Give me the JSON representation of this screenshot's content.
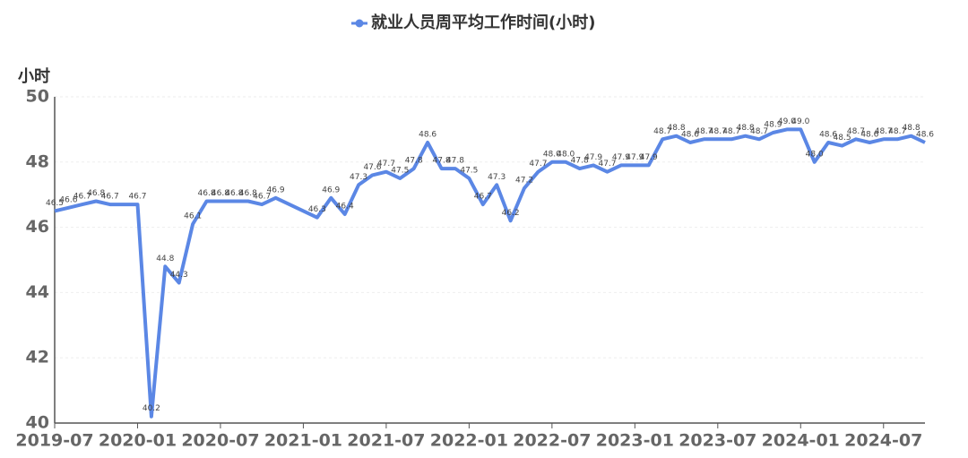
{
  "chart_data": {
    "type": "line",
    "title": "就业人员周平均工作时间(小时)",
    "y_label": "小时",
    "color": "#5b87e5",
    "x": [
      "2019-07",
      "2019-08",
      "2019-09",
      "2019-10",
      "2019-11",
      "2020-01",
      "2020-02",
      "2020-03",
      "2020-04",
      "2020-05",
      "2020-06",
      "2020-07",
      "2020-08",
      "2020-09",
      "2020-10",
      "2020-11",
      "2021-02",
      "2021-03",
      "2021-04",
      "2021-05",
      "2021-06",
      "2021-07",
      "2021-08",
      "2021-09",
      "2021-10",
      "2021-11",
      "2021-12",
      "2022-01",
      "2022-02",
      "2022-03",
      "2022-04",
      "2022-05",
      "2022-06",
      "2022-07",
      "2022-08",
      "2022-09",
      "2022-10",
      "2022-11",
      "2022-12",
      "2023-01",
      "2023-02",
      "2023-03",
      "2023-04",
      "2023-05",
      "2023-06",
      "2023-07",
      "2023-08",
      "2023-09",
      "2023-10",
      "2023-11",
      "2023-12",
      "2024-01",
      "2024-02",
      "2024-03",
      "2024-04",
      "2024-05",
      "2024-06",
      "2024-07",
      "2024-08",
      "2024-09",
      "2024-10"
    ],
    "values": [
      46.5,
      46.6,
      46.7,
      46.8,
      46.7,
      46.7,
      40.2,
      44.8,
      44.3,
      46.1,
      46.8,
      46.8,
      46.8,
      46.8,
      46.7,
      46.9,
      46.3,
      46.9,
      46.4,
      47.3,
      47.6,
      47.7,
      47.5,
      47.8,
      48.6,
      47.8,
      47.8,
      47.5,
      46.7,
      47.3,
      46.2,
      47.2,
      47.7,
      48.0,
      48.0,
      47.8,
      47.9,
      47.7,
      47.9,
      47.9,
      47.9,
      48.7,
      48.8,
      48.6,
      48.7,
      48.7,
      48.7,
      48.8,
      48.7,
      48.9,
      49.0,
      49.0,
      48.0,
      48.6,
      48.5,
      48.7,
      48.6,
      48.7,
      48.7,
      48.8,
      48.6
    ],
    "value_labels": [
      "46.5",
      "46.6",
      "46.7",
      "46.8",
      "46.7",
      "46.7",
      "40.2",
      "44.8",
      "44.3",
      "46.1",
      "46.8",
      "46.8",
      "46.8",
      "46.8",
      "46.7",
      "46.9",
      "46.3",
      "46.9",
      "46.4",
      "47.3",
      "47.6",
      "47.7",
      "47.5",
      "47.8",
      "48.6",
      "47.8",
      "47.8",
      "47.5",
      "46.7",
      "47.3",
      "46.2",
      "47.2",
      "47.7",
      "48.0",
      "48.0",
      "47.8",
      "47.9",
      "47.7",
      "47.9",
      "47.9",
      "47.9",
      "48.7",
      "48.8",
      "48.6",
      "48.7",
      "48.7",
      "48.7",
      "48.8",
      "48.7",
      "48.9",
      "49.0",
      "49.0",
      "48.0",
      "48.6",
      "48.5",
      "48.7",
      "48.6",
      "48.7",
      "48.7",
      "48.8",
      "48.6"
    ],
    "xlim": [
      "2019-07",
      "2024-10"
    ],
    "xticks": [
      "2019-07",
      "2020-01",
      "2020-07",
      "2021-01",
      "2021-07",
      "2022-01",
      "2022-07",
      "2023-01",
      "2023-07",
      "2024-01",
      "2024-07"
    ],
    "ylim": [
      40,
      50
    ],
    "yticks": [
      40,
      42,
      44,
      46,
      48,
      50
    ],
    "grid": true
  }
}
